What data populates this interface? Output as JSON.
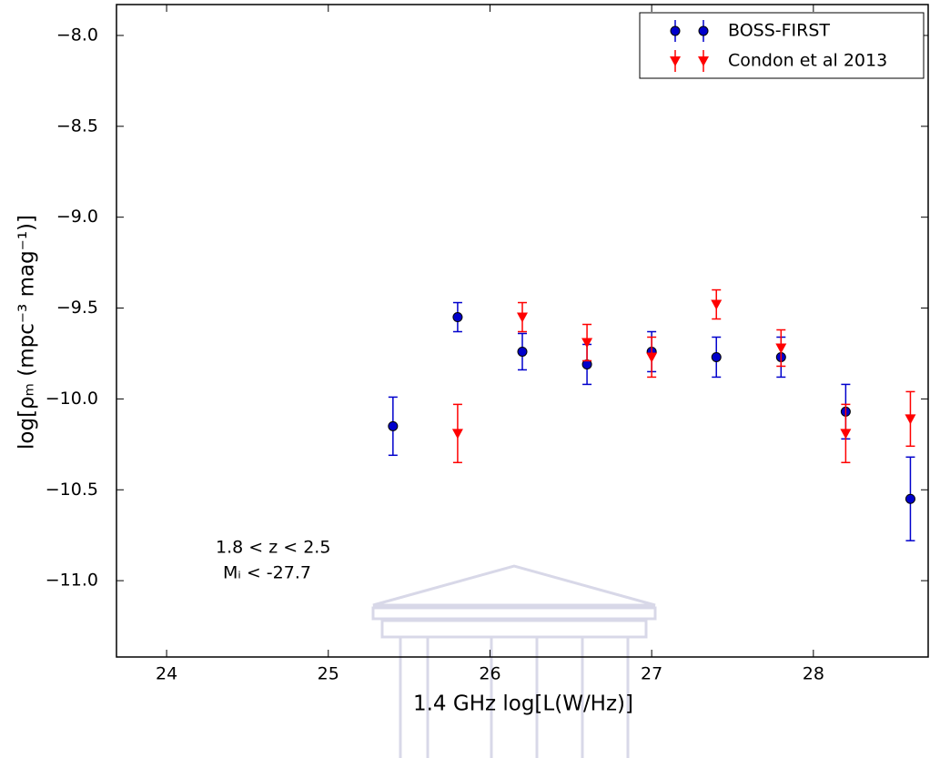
{
  "chart_data": {
    "type": "errorbar",
    "x_label": "1.4 GHz log[L(W/Hz)]",
    "y_label": "log[ρₘ (mpc⁻³ mag⁻¹)]",
    "annotations": [
      "1.8 < z < 2.5",
      "Mᵢ < -27.7"
    ],
    "xlim": [
      23.69,
      28.71
    ],
    "ylim": [
      -11.42,
      -7.83
    ],
    "xticks": [
      24,
      25,
      26,
      27,
      28
    ],
    "yticks": [
      {
        "value": -8.0,
        "label": "−8.0"
      },
      {
        "value": -8.5,
        "label": "−8.5"
      },
      {
        "value": -9.0,
        "label": "−9.0"
      },
      {
        "value": -9.5,
        "label": "−9.5"
      },
      {
        "value": -10.0,
        "label": "−10.0"
      },
      {
        "value": -10.5,
        "label": "−10.5"
      },
      {
        "value": -11.0,
        "label": "−11.0"
      }
    ],
    "legend": "upper right",
    "series": [
      {
        "name": "BOSS-FIRST",
        "color": "#0000cc",
        "marker": "circle",
        "x": [
          25.4,
          25.8,
          26.2,
          26.6,
          27.0,
          27.4,
          27.8,
          28.2,
          28.6
        ],
        "values": [
          -10.15,
          -9.55,
          -9.74,
          -9.81,
          -9.74,
          -9.77,
          -9.77,
          -10.07,
          -10.55
        ],
        "errors": [
          0.16,
          0.08,
          0.1,
          0.11,
          0.11,
          0.11,
          0.11,
          0.15,
          0.23
        ]
      },
      {
        "name": "Condon et al 2013",
        "color": "#ff0000",
        "marker": "triangle-down",
        "x": [
          25.8,
          26.2,
          26.6,
          27.0,
          27.4,
          27.8,
          28.2,
          28.6
        ],
        "values": [
          -10.19,
          -9.55,
          -9.69,
          -9.77,
          -9.48,
          -9.72,
          -10.19,
          -10.11
        ],
        "errors": [
          0.16,
          0.08,
          0.1,
          0.11,
          0.08,
          0.1,
          0.16,
          0.15
        ]
      }
    ]
  }
}
